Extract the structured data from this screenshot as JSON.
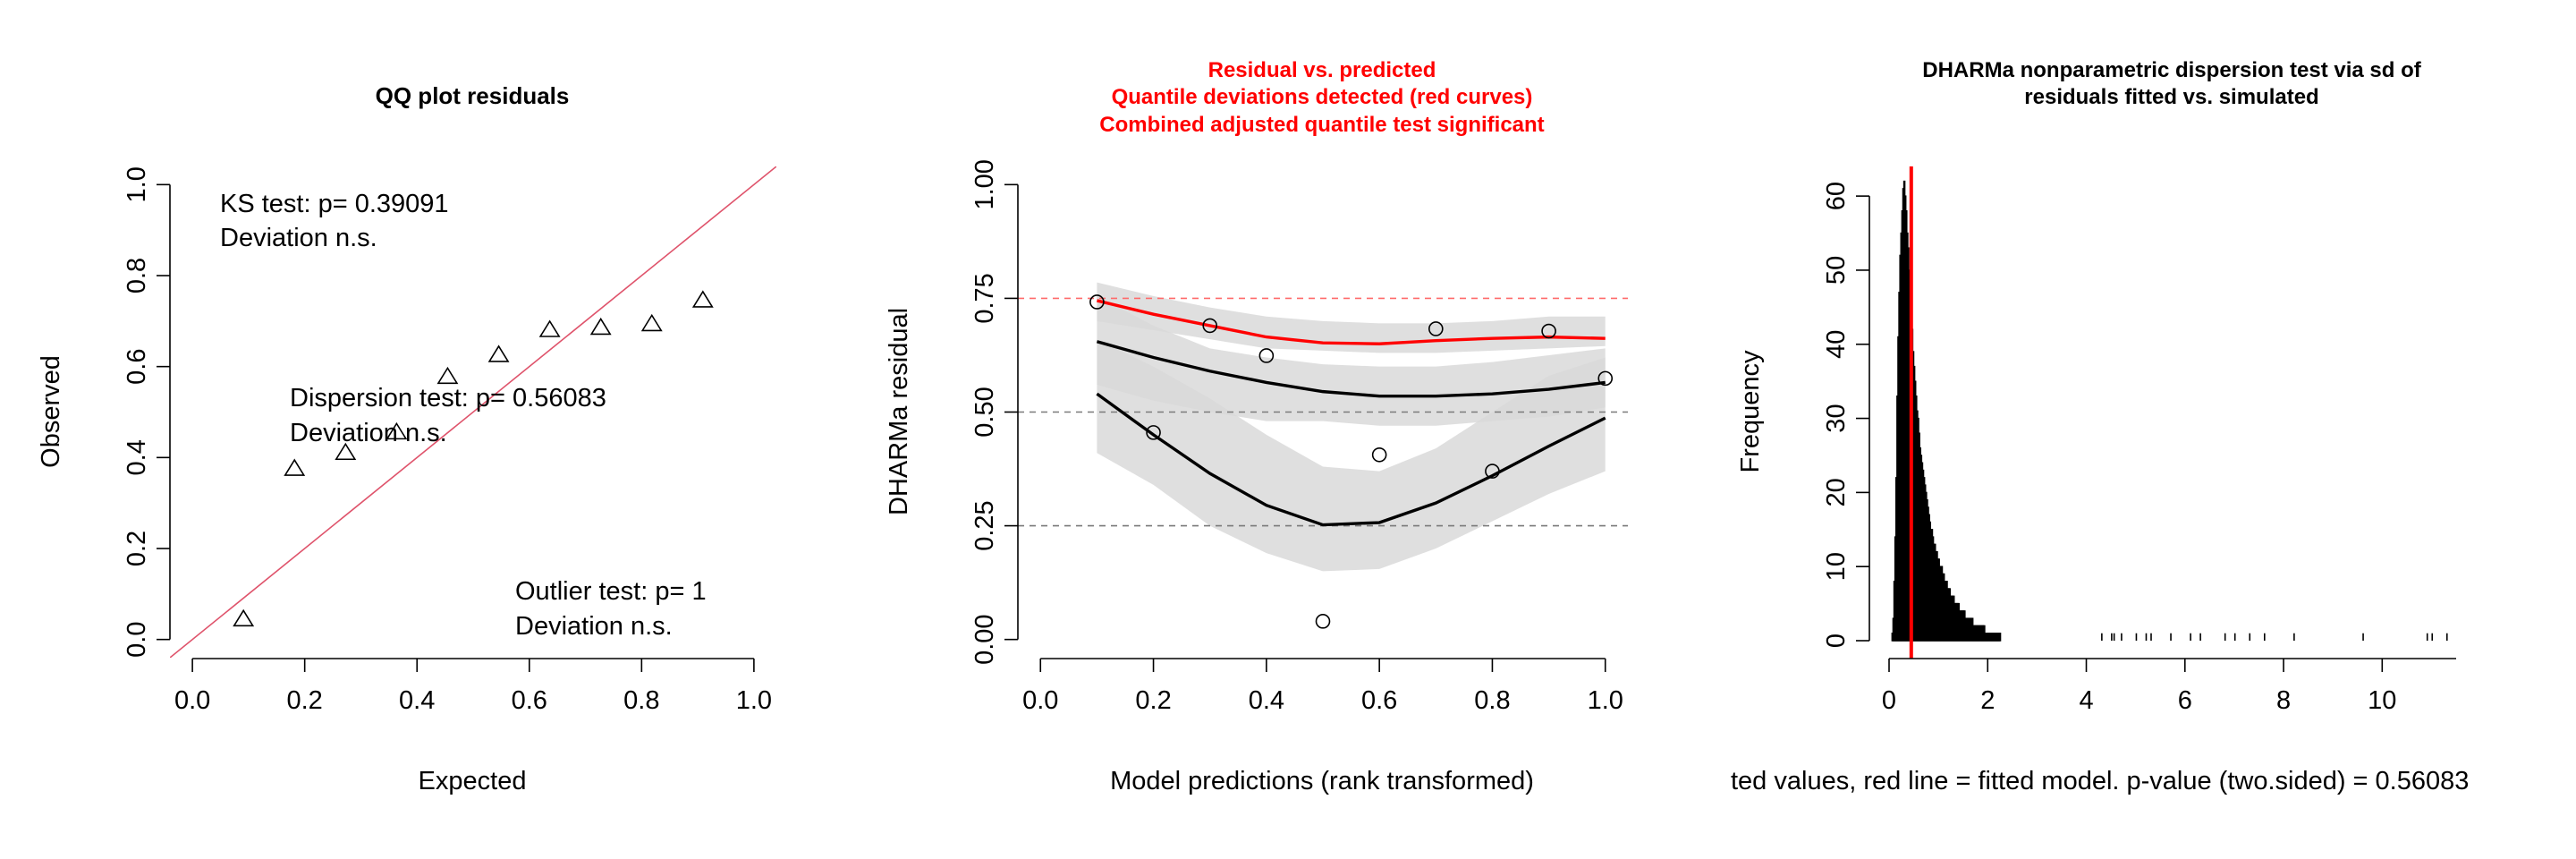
{
  "colors": {
    "red": "#ff0000",
    "qqline": "#df536b",
    "band": "#d9d9d9",
    "bandDark": "#bdbdbd",
    "ink": "#000000"
  },
  "chart_data": [
    {
      "type": "scatter",
      "title": "QQ plot residuals",
      "xlabel": "Expected",
      "ylabel": "Observed",
      "xlim": [
        -0.04,
        1.04
      ],
      "ylim": [
        -0.04,
        1.04
      ],
      "xticks": [
        "0.0",
        "0.2",
        "0.4",
        "0.6",
        "0.8",
        "1.0"
      ],
      "yticks": [
        "0.0",
        "0.2",
        "0.4",
        "0.6",
        "0.8",
        "1.0"
      ],
      "marker": "triangle",
      "x": [
        0.0909,
        0.1818,
        0.2727,
        0.3636,
        0.4545,
        0.5455,
        0.6364,
        0.7273,
        0.8182,
        0.9091
      ],
      "y": [
        0.044,
        0.375,
        0.41,
        0.455,
        0.577,
        0.625,
        0.68,
        0.685,
        0.693,
        0.745
      ],
      "reference_line": {
        "slope": 1,
        "intercept": 0
      },
      "annotations": {
        "ks_line1": "KS test: p= 0.39091",
        "ks_line2": "Deviation  n.s.",
        "disp_line1": "Dispersion test: p= 0.56083",
        "disp_line2": "Deviation  n.s.",
        "outlier_line1": "Outlier test: p= 1",
        "outlier_line2": "Deviation  n.s."
      }
    },
    {
      "type": "scatter",
      "title_lines": [
        "Residual vs. predicted",
        "Quantile deviations detected (red curves)",
        "Combined adjusted quantile test significant"
      ],
      "xlabel": "Model predictions (rank transformed)",
      "ylabel": "DHARMa residual",
      "xlim": [
        -0.04,
        1.04
      ],
      "ylim": [
        -0.04,
        1.04
      ],
      "xticks": [
        "0.0",
        "0.2",
        "0.4",
        "0.6",
        "0.8",
        "1.0"
      ],
      "yticks": [
        "0.00",
        "0.25",
        "0.50",
        "0.75",
        "1.00"
      ],
      "reference_levels": [
        0.25,
        0.5,
        0.75
      ],
      "x": [
        0.1,
        0.2,
        0.3,
        0.4,
        0.5,
        0.6,
        0.7,
        0.8,
        0.9,
        1.0
      ],
      "y": [
        0.742,
        0.455,
        0.69,
        0.624,
        0.04,
        0.406,
        0.683,
        0.37,
        0.678,
        0.574
      ],
      "band_x": [
        0.1,
        0.2,
        0.3,
        0.4,
        0.5,
        0.6,
        0.7,
        0.8,
        0.9,
        1.0
      ],
      "quantile_bands": [
        {
          "level": 0.25,
          "lower": [
            0.41,
            0.34,
            0.25,
            0.19,
            0.15,
            0.155,
            0.2,
            0.26,
            0.32,
            0.37
          ],
          "upper": [
            0.66,
            0.6,
            0.53,
            0.45,
            0.38,
            0.37,
            0.42,
            0.5,
            0.58,
            0.62
          ]
        },
        {
          "level": 0.5,
          "lower": [
            0.56,
            0.525,
            0.5,
            0.48,
            0.48,
            0.47,
            0.47,
            0.48,
            0.49,
            0.51
          ],
          "upper": [
            0.755,
            0.69,
            0.64,
            0.62,
            0.605,
            0.6,
            0.6,
            0.61,
            0.625,
            0.64
          ]
        },
        {
          "level": 0.75,
          "lower": [
            0.7,
            0.68,
            0.66,
            0.64,
            0.635,
            0.63,
            0.63,
            0.635,
            0.64,
            0.645
          ],
          "upper": [
            0.785,
            0.755,
            0.73,
            0.71,
            0.7,
            0.695,
            0.695,
            0.7,
            0.71,
            0.71
          ]
        }
      ],
      "quantile_lines": [
        {
          "level": 0.25,
          "color": "black",
          "y": [
            0.54,
            0.45,
            0.365,
            0.295,
            0.252,
            0.257,
            0.3,
            0.36,
            0.425,
            0.487
          ]
        },
        {
          "level": 0.5,
          "color": "black",
          "y": [
            0.655,
            0.62,
            0.59,
            0.565,
            0.545,
            0.535,
            0.535,
            0.54,
            0.55,
            0.565
          ]
        },
        {
          "level": 0.75,
          "color": "red",
          "y": [
            0.745,
            0.715,
            0.69,
            0.665,
            0.652,
            0.65,
            0.657,
            0.662,
            0.665,
            0.662
          ]
        }
      ]
    },
    {
      "type": "bar",
      "subtype": "histogram",
      "title_lines": [
        "DHARMa nonparametric dispersion test via sd of",
        "residuals fitted vs. simulated"
      ],
      "xlabel": "ted values, red line = fitted model. p-value (two.sided) = 0.56083",
      "ylabel": "Frequency",
      "xlim": [
        0,
        11.5
      ],
      "ylim": [
        0,
        64
      ],
      "xticks": [
        "0",
        "2",
        "4",
        "6",
        "8",
        "10"
      ],
      "yticks": [
        "0",
        "10",
        "20",
        "30",
        "40",
        "50",
        "60"
      ],
      "fitted_value": 0.45,
      "bin_width": 0.02,
      "bins_start": 0.06,
      "counts": [
        1,
        3,
        8,
        14,
        22,
        33,
        41,
        47,
        52,
        55,
        58,
        61,
        62,
        60,
        58,
        55,
        53,
        50,
        47,
        45,
        42,
        39,
        37,
        35,
        33,
        31,
        30,
        28,
        26,
        25,
        24,
        23,
        22,
        21,
        20,
        19,
        18,
        17,
        16,
        15,
        15,
        14,
        13,
        13,
        12,
        12,
        11,
        11,
        10,
        10,
        10,
        9,
        9,
        8,
        8,
        8,
        7,
        7,
        7,
        6,
        6,
        6,
        6,
        5,
        5,
        5,
        5,
        5,
        4,
        4,
        4,
        4,
        4,
        4,
        3,
        3,
        3,
        3,
        3,
        3,
        3,
        3,
        2,
        2,
        2,
        2,
        2,
        2,
        2,
        2,
        2,
        2,
        2,
        2,
        1,
        1,
        1,
        1,
        1,
        1,
        1,
        1,
        1,
        1,
        1,
        1,
        1,
        1,
        1,
        1
      ],
      "tail_values": [
        4.3,
        4.5,
        4.55,
        4.7,
        5.0,
        5.2,
        5.3,
        5.7,
        6.1,
        6.3,
        6.8,
        7.0,
        7.3,
        7.6,
        8.2,
        9.6,
        10.9,
        11.0,
        11.3
      ]
    }
  ]
}
